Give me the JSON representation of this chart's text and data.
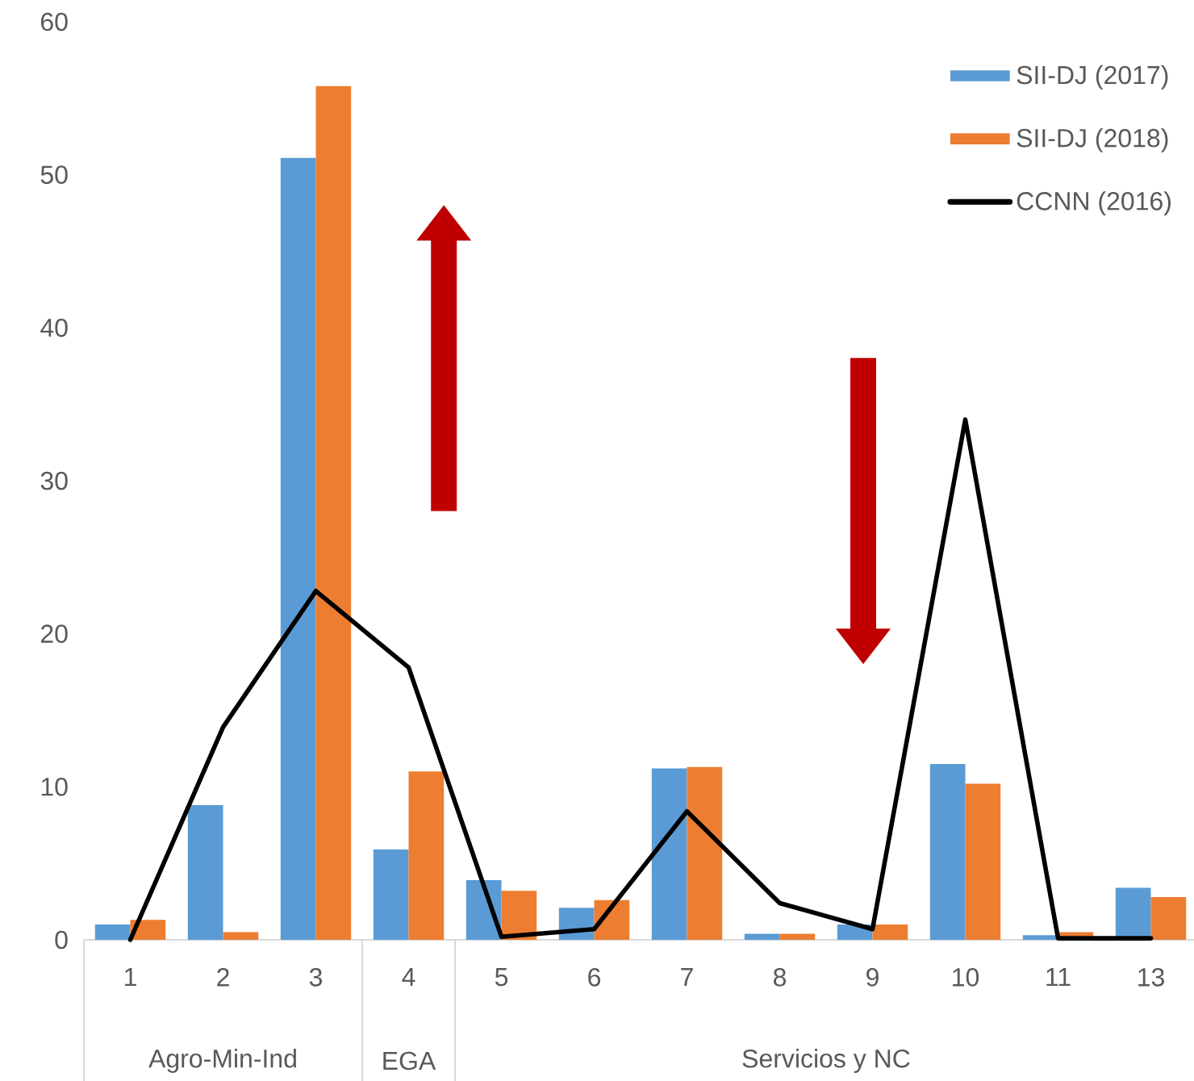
{
  "chart_data": {
    "type": "bar",
    "categories": [
      "1",
      "2",
      "3",
      "4",
      "5",
      "6",
      "7",
      "8",
      "9",
      "10",
      "11",
      "13"
    ],
    "series": [
      {
        "name": "SII-DJ (2017)",
        "color": "#5b9bd5",
        "values": [
          1.0,
          8.8,
          51.1,
          5.9,
          3.9,
          2.1,
          11.2,
          0.4,
          1.0,
          11.5,
          0.3,
          3.4
        ]
      },
      {
        "name": "SII-DJ (2018)",
        "color": "#ed7d31",
        "values": [
          1.3,
          0.5,
          55.8,
          11.0,
          3.2,
          2.6,
          11.3,
          0.4,
          1.0,
          10.2,
          0.5,
          2.8
        ]
      },
      {
        "name": "CCNN (2016)",
        "type": "line",
        "color": "#000000",
        "marker": "none",
        "values": [
          0.0,
          13.9,
          22.8,
          17.8,
          0.2,
          0.7,
          8.4,
          2.4,
          0.7,
          34.0,
          0.1,
          0.1
        ]
      }
    ],
    "ylim": [
      0,
      60
    ],
    "yticks": [
      0,
      10,
      20,
      30,
      40,
      50,
      60
    ],
    "annotations": [
      "Agro-Min-Ind",
      "EGA",
      "Servicios y NC"
    ],
    "legend": "top right"
  }
}
